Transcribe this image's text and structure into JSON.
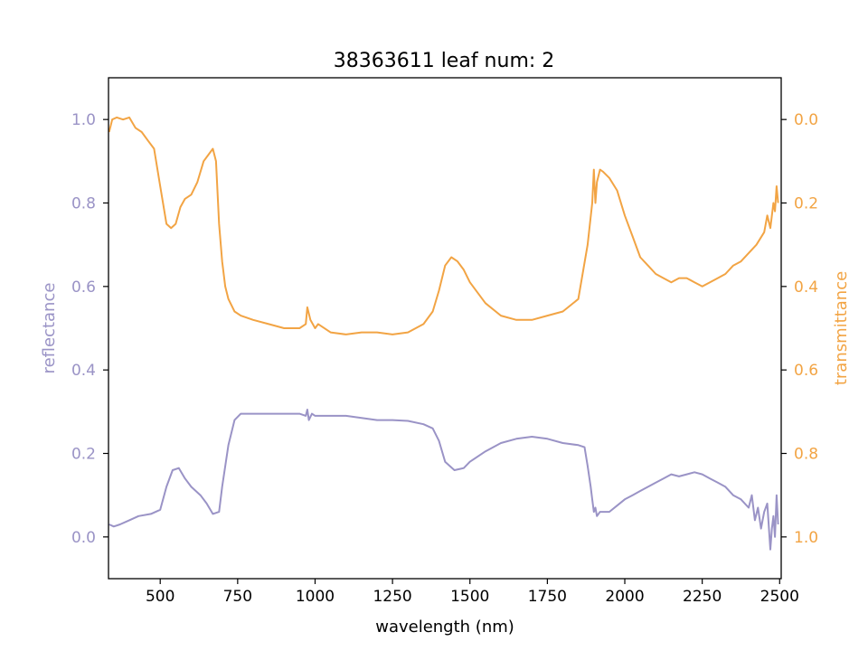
{
  "chart_data": {
    "type": "line",
    "title": "38363611 leaf num: 2",
    "xlabel": "wavelength (nm)",
    "xlim": [
      333,
      2505
    ],
    "x_ticks": [
      500,
      750,
      1000,
      1250,
      1500,
      1750,
      2000,
      2250,
      2500
    ],
    "y_left": {
      "label": "reflectance",
      "color": "#9a93c6",
      "ylim": [
        -0.1,
        1.1
      ],
      "ticks": [
        0.0,
        0.2,
        0.4,
        0.6,
        0.8,
        1.0
      ],
      "tick_labels": [
        "0.0",
        "0.2",
        "0.4",
        "0.6",
        "0.8",
        "1.0"
      ]
    },
    "y_right": {
      "label": "transmittance",
      "color": "#f2a444",
      "ylim": [
        1.1,
        -0.1
      ],
      "inverted": true,
      "ticks": [
        0.0,
        0.2,
        0.4,
        0.6,
        0.8,
        1.0
      ],
      "tick_labels": [
        "0.0",
        "0.2",
        "0.4",
        "0.6",
        "0.8",
        "1.0"
      ]
    },
    "grid": false,
    "series": [
      {
        "key": "reflectance",
        "axis": "left",
        "color": "#9a93c6",
        "x": [
          335,
          350,
          370,
          400,
          430,
          470,
          500,
          520,
          540,
          560,
          580,
          600,
          630,
          650,
          670,
          690,
          700,
          720,
          740,
          760,
          800,
          850,
          900,
          950,
          970,
          975,
          980,
          990,
          1000,
          1050,
          1100,
          1150,
          1200,
          1250,
          1300,
          1350,
          1380,
          1400,
          1420,
          1450,
          1480,
          1500,
          1550,
          1600,
          1650,
          1700,
          1750,
          1800,
          1850,
          1870,
          1880,
          1890,
          1895,
          1900,
          1905,
          1910,
          1920,
          1950,
          1975,
          2000,
          2025,
          2050,
          2075,
          2100,
          2125,
          2150,
          2175,
          2200,
          2225,
          2250,
          2275,
          2300,
          2325,
          2350,
          2375,
          2400,
          2410,
          2420,
          2430,
          2440,
          2450,
          2460,
          2470,
          2475,
          2480,
          2485,
          2490,
          2495
        ],
        "y": [
          0.03,
          0.025,
          0.03,
          0.04,
          0.05,
          0.055,
          0.065,
          0.12,
          0.16,
          0.165,
          0.14,
          0.12,
          0.1,
          0.08,
          0.055,
          0.06,
          0.12,
          0.22,
          0.28,
          0.295,
          0.295,
          0.295,
          0.295,
          0.295,
          0.29,
          0.305,
          0.28,
          0.295,
          0.29,
          0.29,
          0.29,
          0.285,
          0.28,
          0.28,
          0.278,
          0.27,
          0.26,
          0.23,
          0.18,
          0.16,
          0.165,
          0.18,
          0.205,
          0.225,
          0.235,
          0.24,
          0.235,
          0.225,
          0.22,
          0.215,
          0.17,
          0.12,
          0.09,
          0.06,
          0.07,
          0.05,
          0.06,
          0.06,
          0.075,
          0.09,
          0.1,
          0.11,
          0.12,
          0.13,
          0.14,
          0.15,
          0.145,
          0.15,
          0.155,
          0.15,
          0.14,
          0.13,
          0.12,
          0.1,
          0.09,
          0.07,
          0.1,
          0.04,
          0.07,
          0.02,
          0.06,
          0.08,
          -0.03,
          0.02,
          0.05,
          0.0,
          0.1,
          0.03
        ]
      },
      {
        "key": "transmittance",
        "axis": "right",
        "color": "#f2a444",
        "x": [
          335,
          345,
          360,
          380,
          400,
          420,
          440,
          460,
          480,
          500,
          520,
          535,
          550,
          565,
          580,
          600,
          620,
          640,
          660,
          670,
          680,
          690,
          700,
          710,
          720,
          740,
          760,
          800,
          850,
          900,
          950,
          970,
          975,
          985,
          1000,
          1010,
          1050,
          1100,
          1150,
          1200,
          1250,
          1300,
          1350,
          1380,
          1400,
          1420,
          1440,
          1460,
          1480,
          1500,
          1550,
          1600,
          1650,
          1700,
          1750,
          1800,
          1850,
          1880,
          1895,
          1900,
          1905,
          1910,
          1920,
          1930,
          1950,
          1975,
          2000,
          2025,
          2050,
          2075,
          2100,
          2125,
          2150,
          2175,
          2200,
          2225,
          2250,
          2275,
          2300,
          2325,
          2350,
          2375,
          2400,
          2425,
          2450,
          2460,
          2470,
          2480,
          2485,
          2490,
          2495
        ],
        "y": [
          0.03,
          0.0,
          -0.005,
          0.0,
          -0.005,
          0.02,
          0.03,
          0.05,
          0.07,
          0.16,
          0.25,
          0.26,
          0.25,
          0.21,
          0.19,
          0.18,
          0.15,
          0.1,
          0.08,
          0.07,
          0.1,
          0.25,
          0.34,
          0.4,
          0.43,
          0.46,
          0.47,
          0.48,
          0.49,
          0.5,
          0.5,
          0.49,
          0.45,
          0.48,
          0.5,
          0.49,
          0.51,
          0.515,
          0.51,
          0.51,
          0.515,
          0.51,
          0.49,
          0.46,
          0.41,
          0.35,
          0.33,
          0.34,
          0.36,
          0.39,
          0.44,
          0.47,
          0.48,
          0.48,
          0.47,
          0.46,
          0.43,
          0.3,
          0.2,
          0.12,
          0.2,
          0.15,
          0.12,
          0.125,
          0.14,
          0.17,
          0.23,
          0.28,
          0.33,
          0.35,
          0.37,
          0.38,
          0.39,
          0.38,
          0.38,
          0.39,
          0.4,
          0.39,
          0.38,
          0.37,
          0.35,
          0.34,
          0.32,
          0.3,
          0.27,
          0.23,
          0.26,
          0.2,
          0.22,
          0.16,
          0.2
        ]
      }
    ]
  }
}
